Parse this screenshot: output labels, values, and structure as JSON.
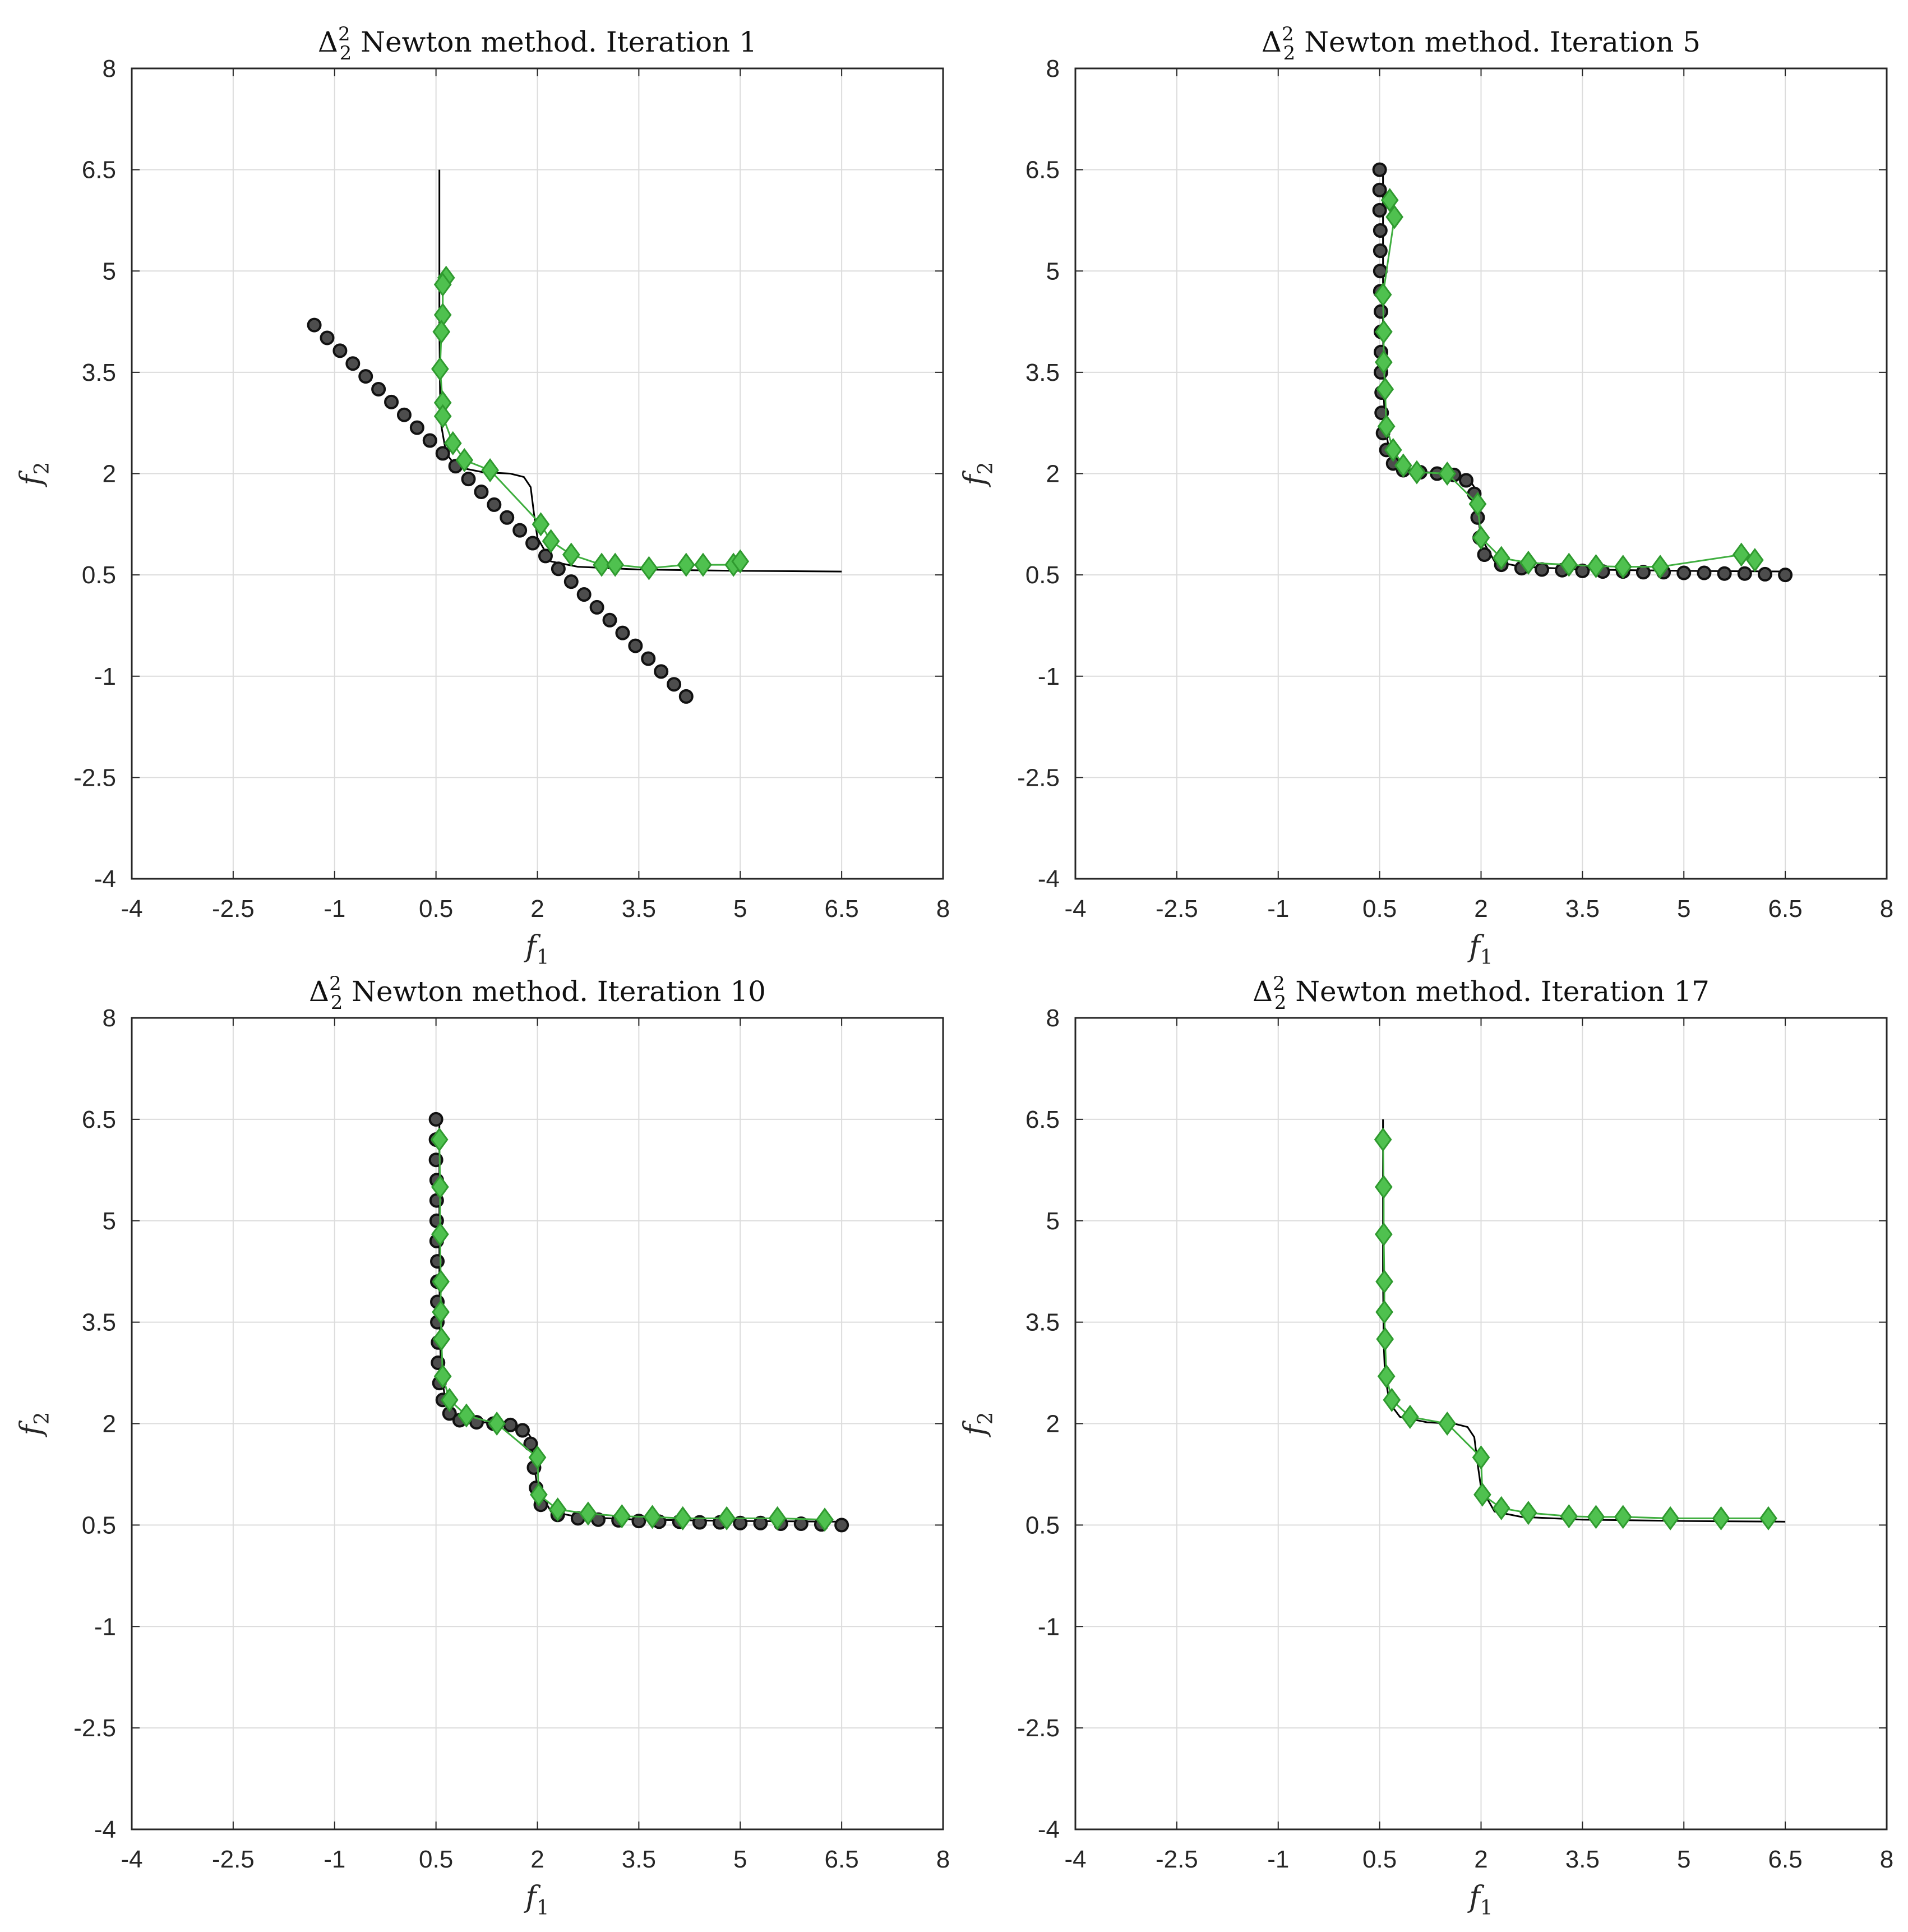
{
  "figure": {
    "panels": [
      {
        "title_prefix": "Δ",
        "title_sup": "2",
        "title_sub": "2",
        "title_text": " Newton method. Iteration 1"
      },
      {
        "title_prefix": "Δ",
        "title_sup": "2",
        "title_sub": "2",
        "title_text": " Newton method. Iteration 5"
      },
      {
        "title_prefix": "Δ",
        "title_sup": "2",
        "title_sub": "2",
        "title_text": " Newton method. Iteration 10"
      },
      {
        "title_prefix": "Δ",
        "title_sup": "2",
        "title_sub": "2",
        "title_text": " Newton method. Iteration 17"
      }
    ]
  },
  "colors": {
    "grid": "#dcdcdc",
    "axes": "#262626",
    "true_front": "#000000",
    "circle_fill": "#4d4d4d",
    "circle_edge": "#111111",
    "diamond_fill": "#4fc14f",
    "diamond_edge": "#2f9a2f",
    "green_line": "#3fae3f"
  },
  "chart_data": [
    {
      "type": "scatter",
      "title": "Δ_2^2 Newton method. Iteration 1",
      "xlabel": "f1",
      "ylabel": "f2",
      "xlim": [
        -4,
        8
      ],
      "ylim": [
        -4,
        8
      ],
      "xticks": [
        "-4",
        "-2.5",
        "-1",
        "0.5",
        "2",
        "3.5",
        "5",
        "6.5",
        "8"
      ],
      "yticks": [
        "-4",
        "-2.5",
        "-1",
        "0.5",
        "2",
        "3.5",
        "5",
        "6.5",
        "8"
      ],
      "grid": true,
      "true_front": [
        [
          0.55,
          6.5
        ],
        [
          0.55,
          4.2
        ],
        [
          0.56,
          3.2
        ],
        [
          0.58,
          2.7
        ],
        [
          0.65,
          2.3
        ],
        [
          0.8,
          2.1
        ],
        [
          1.2,
          2.02
        ],
        [
          1.6,
          2.0
        ],
        [
          1.8,
          1.95
        ],
        [
          1.9,
          1.8
        ],
        [
          1.95,
          1.4
        ],
        [
          2.0,
          1.05
        ],
        [
          2.2,
          0.7
        ],
        [
          2.6,
          0.62
        ],
        [
          3.5,
          0.58
        ],
        [
          5,
          0.56
        ],
        [
          6.5,
          0.55
        ]
      ],
      "circles": [
        [
          -1.3,
          4.2
        ],
        [
          -1.11,
          4.01
        ],
        [
          -0.92,
          3.82
        ],
        [
          -0.73,
          3.63
        ],
        [
          -0.54,
          3.44
        ],
        [
          -0.35,
          3.25
        ],
        [
          -0.16,
          3.06
        ],
        [
          0.03,
          2.87
        ],
        [
          0.22,
          2.68
        ],
        [
          0.41,
          2.49
        ],
        [
          0.6,
          2.3
        ],
        [
          0.79,
          2.11
        ],
        [
          0.98,
          1.92
        ],
        [
          1.17,
          1.73
        ],
        [
          1.36,
          1.54
        ],
        [
          1.55,
          1.35
        ],
        [
          1.74,
          1.16
        ],
        [
          1.93,
          0.97
        ],
        [
          2.12,
          0.78
        ],
        [
          2.31,
          0.59
        ],
        [
          2.5,
          0.4
        ],
        [
          2.69,
          0.21
        ],
        [
          2.88,
          0.02
        ],
        [
          3.07,
          -0.17
        ],
        [
          3.26,
          -0.36
        ],
        [
          3.45,
          -0.55
        ],
        [
          3.64,
          -0.74
        ],
        [
          3.83,
          -0.93
        ],
        [
          4.02,
          -1.12
        ],
        [
          4.2,
          -1.3
        ]
      ],
      "diamonds": [
        [
          0.65,
          4.9
        ],
        [
          0.6,
          4.8
        ],
        [
          0.6,
          4.35
        ],
        [
          0.58,
          4.1
        ],
        [
          0.56,
          3.55
        ],
        [
          0.6,
          3.05
        ],
        [
          0.6,
          2.85
        ],
        [
          0.75,
          2.45
        ],
        [
          0.92,
          2.2
        ],
        [
          1.3,
          2.05
        ],
        [
          2.05,
          1.25
        ],
        [
          2.2,
          1.0
        ],
        [
          2.5,
          0.8
        ],
        [
          2.95,
          0.65
        ],
        [
          3.15,
          0.65
        ],
        [
          3.65,
          0.6
        ],
        [
          4.2,
          0.65
        ],
        [
          4.45,
          0.65
        ],
        [
          4.9,
          0.65
        ],
        [
          5,
          0.7
        ]
      ]
    },
    {
      "type": "scatter",
      "title": "Δ_2^2 Newton method. Iteration 5",
      "xlabel": "f1",
      "ylabel": "f2",
      "xlim": [
        -4,
        8
      ],
      "ylim": [
        -4,
        8
      ],
      "xticks": [
        "-4",
        "-2.5",
        "-1",
        "0.5",
        "2",
        "3.5",
        "5",
        "6.5",
        "8"
      ],
      "yticks": [
        "-4",
        "-2.5",
        "-1",
        "0.5",
        "2",
        "3.5",
        "5",
        "6.5",
        "8"
      ],
      "grid": true,
      "true_front": [
        [
          0.55,
          6.5
        ],
        [
          0.55,
          4.2
        ],
        [
          0.56,
          3.2
        ],
        [
          0.58,
          2.7
        ],
        [
          0.65,
          2.3
        ],
        [
          0.8,
          2.1
        ],
        [
          1.2,
          2.02
        ],
        [
          1.6,
          2.0
        ],
        [
          1.8,
          1.95
        ],
        [
          1.9,
          1.8
        ],
        [
          1.95,
          1.4
        ],
        [
          2.0,
          1.05
        ],
        [
          2.2,
          0.7
        ],
        [
          2.6,
          0.62
        ],
        [
          3.5,
          0.58
        ],
        [
          5,
          0.56
        ],
        [
          6.5,
          0.55
        ]
      ],
      "circles": [
        [
          0.5,
          6.5
        ],
        [
          0.5,
          6.2
        ],
        [
          0.5,
          5.9
        ],
        [
          0.51,
          5.6
        ],
        [
          0.51,
          5.3
        ],
        [
          0.51,
          5.0
        ],
        [
          0.51,
          4.7
        ],
        [
          0.52,
          4.4
        ],
        [
          0.52,
          4.1
        ],
        [
          0.52,
          3.8
        ],
        [
          0.52,
          3.5
        ],
        [
          0.53,
          3.2
        ],
        [
          0.53,
          2.9
        ],
        [
          0.55,
          2.6
        ],
        [
          0.6,
          2.35
        ],
        [
          0.7,
          2.15
        ],
        [
          0.85,
          2.05
        ],
        [
          1.1,
          2.02
        ],
        [
          1.35,
          2.0
        ],
        [
          1.6,
          1.98
        ],
        [
          1.78,
          1.9
        ],
        [
          1.9,
          1.7
        ],
        [
          1.95,
          1.35
        ],
        [
          1.98,
          1.05
        ],
        [
          2.05,
          0.8
        ],
        [
          2.3,
          0.65
        ],
        [
          2.6,
          0.6
        ],
        [
          2.9,
          0.58
        ],
        [
          3.2,
          0.57
        ],
        [
          3.5,
          0.56
        ],
        [
          3.8,
          0.55
        ],
        [
          4.1,
          0.55
        ],
        [
          4.4,
          0.54
        ],
        [
          4.7,
          0.54
        ],
        [
          5.0,
          0.53
        ],
        [
          5.3,
          0.53
        ],
        [
          5.6,
          0.52
        ],
        [
          5.9,
          0.52
        ],
        [
          6.2,
          0.51
        ],
        [
          6.5,
          0.5
        ]
      ],
      "diamonds": [
        [
          0.65,
          6.05
        ],
        [
          0.72,
          5.8
        ],
        [
          0.55,
          4.65
        ],
        [
          0.56,
          4.1
        ],
        [
          0.56,
          3.65
        ],
        [
          0.58,
          3.25
        ],
        [
          0.6,
          2.7
        ],
        [
          0.7,
          2.35
        ],
        [
          0.85,
          2.12
        ],
        [
          1.05,
          2.02
        ],
        [
          1.5,
          2.0
        ],
        [
          1.95,
          1.55
        ],
        [
          2.0,
          1.05
        ],
        [
          2.3,
          0.75
        ],
        [
          2.7,
          0.68
        ],
        [
          3.3,
          0.65
        ],
        [
          3.7,
          0.63
        ],
        [
          4.1,
          0.62
        ],
        [
          4.65,
          0.62
        ],
        [
          5.85,
          0.8
        ],
        [
          6.05,
          0.72
        ]
      ]
    },
    {
      "type": "scatter",
      "title": "Δ_2^2 Newton method. Iteration 10",
      "xlabel": "f1",
      "ylabel": "f2",
      "xlim": [
        -4,
        8
      ],
      "ylim": [
        -4,
        8
      ],
      "xticks": [
        "-4",
        "-2.5",
        "-1",
        "0.5",
        "2",
        "3.5",
        "5",
        "6.5",
        "8"
      ],
      "yticks": [
        "-4",
        "-2.5",
        "-1",
        "0.5",
        "2",
        "3.5",
        "5",
        "6.5",
        "8"
      ],
      "grid": true,
      "true_front": [
        [
          0.55,
          6.5
        ],
        [
          0.55,
          4.2
        ],
        [
          0.56,
          3.2
        ],
        [
          0.58,
          2.7
        ],
        [
          0.65,
          2.3
        ],
        [
          0.8,
          2.1
        ],
        [
          1.2,
          2.02
        ],
        [
          1.6,
          2.0
        ],
        [
          1.8,
          1.95
        ],
        [
          1.9,
          1.8
        ],
        [
          1.95,
          1.4
        ],
        [
          2.0,
          1.05
        ],
        [
          2.2,
          0.7
        ],
        [
          2.6,
          0.62
        ],
        [
          3.5,
          0.58
        ],
        [
          5,
          0.56
        ],
        [
          6.5,
          0.55
        ]
      ],
      "circles": [
        [
          0.5,
          6.5
        ],
        [
          0.5,
          6.2
        ],
        [
          0.5,
          5.9
        ],
        [
          0.51,
          5.6
        ],
        [
          0.51,
          5.3
        ],
        [
          0.51,
          5.0
        ],
        [
          0.51,
          4.7
        ],
        [
          0.52,
          4.4
        ],
        [
          0.52,
          4.1
        ],
        [
          0.52,
          3.8
        ],
        [
          0.52,
          3.5
        ],
        [
          0.53,
          3.2
        ],
        [
          0.53,
          2.9
        ],
        [
          0.55,
          2.6
        ],
        [
          0.6,
          2.35
        ],
        [
          0.7,
          2.15
        ],
        [
          0.85,
          2.05
        ],
        [
          1.1,
          2.02
        ],
        [
          1.35,
          2.0
        ],
        [
          1.6,
          1.98
        ],
        [
          1.78,
          1.9
        ],
        [
          1.9,
          1.7
        ],
        [
          1.95,
          1.35
        ],
        [
          1.98,
          1.05
        ],
        [
          2.05,
          0.8
        ],
        [
          2.3,
          0.65
        ],
        [
          2.6,
          0.6
        ],
        [
          2.9,
          0.58
        ],
        [
          3.2,
          0.57
        ],
        [
          3.5,
          0.56
        ],
        [
          3.8,
          0.55
        ],
        [
          4.1,
          0.55
        ],
        [
          4.4,
          0.54
        ],
        [
          4.7,
          0.54
        ],
        [
          5.0,
          0.53
        ],
        [
          5.3,
          0.53
        ],
        [
          5.6,
          0.52
        ],
        [
          5.9,
          0.52
        ],
        [
          6.2,
          0.51
        ],
        [
          6.5,
          0.5
        ]
      ],
      "diamonds": [
        [
          0.55,
          6.2
        ],
        [
          0.56,
          5.5
        ],
        [
          0.56,
          4.8
        ],
        [
          0.57,
          4.1
        ],
        [
          0.57,
          3.65
        ],
        [
          0.58,
          3.25
        ],
        [
          0.6,
          2.7
        ],
        [
          0.7,
          2.35
        ],
        [
          0.95,
          2.12
        ],
        [
          1.4,
          2.0
        ],
        [
          2.0,
          1.5
        ],
        [
          2.02,
          0.95
        ],
        [
          2.3,
          0.73
        ],
        [
          2.75,
          0.67
        ],
        [
          3.25,
          0.63
        ],
        [
          3.7,
          0.62
        ],
        [
          4.15,
          0.6
        ],
        [
          4.8,
          0.6
        ],
        [
          5.55,
          0.6
        ],
        [
          6.25,
          0.58
        ]
      ]
    },
    {
      "type": "scatter",
      "title": "Δ_2^2 Newton method. Iteration 17",
      "xlabel": "f1",
      "ylabel": "f2",
      "xlim": [
        -4,
        8
      ],
      "ylim": [
        -4,
        8
      ],
      "xticks": [
        "-4",
        "-2.5",
        "-1",
        "0.5",
        "2",
        "3.5",
        "5",
        "6.5",
        "8"
      ],
      "yticks": [
        "-4",
        "-2.5",
        "-1",
        "0.5",
        "2",
        "3.5",
        "5",
        "6.5",
        "8"
      ],
      "grid": true,
      "true_front": [
        [
          0.55,
          6.5
        ],
        [
          0.55,
          4.2
        ],
        [
          0.56,
          3.2
        ],
        [
          0.58,
          2.7
        ],
        [
          0.65,
          2.3
        ],
        [
          0.8,
          2.1
        ],
        [
          1.2,
          2.02
        ],
        [
          1.6,
          2.0
        ],
        [
          1.8,
          1.95
        ],
        [
          1.9,
          1.8
        ],
        [
          1.95,
          1.4
        ],
        [
          2.0,
          1.05
        ],
        [
          2.2,
          0.7
        ],
        [
          2.6,
          0.62
        ],
        [
          3.5,
          0.58
        ],
        [
          5,
          0.56
        ],
        [
          6.5,
          0.55
        ]
      ],
      "circles": [],
      "diamonds": [
        [
          0.55,
          6.2
        ],
        [
          0.56,
          5.5
        ],
        [
          0.56,
          4.8
        ],
        [
          0.57,
          4.1
        ],
        [
          0.57,
          3.65
        ],
        [
          0.58,
          3.25
        ],
        [
          0.6,
          2.7
        ],
        [
          0.68,
          2.35
        ],
        [
          0.95,
          2.1
        ],
        [
          1.5,
          2.0
        ],
        [
          2.0,
          1.5
        ],
        [
          2.02,
          0.95
        ],
        [
          2.3,
          0.75
        ],
        [
          2.7,
          0.68
        ],
        [
          3.3,
          0.63
        ],
        [
          3.7,
          0.62
        ],
        [
          4.1,
          0.62
        ],
        [
          4.8,
          0.6
        ],
        [
          5.55,
          0.6
        ],
        [
          6.25,
          0.6
        ]
      ]
    }
  ]
}
